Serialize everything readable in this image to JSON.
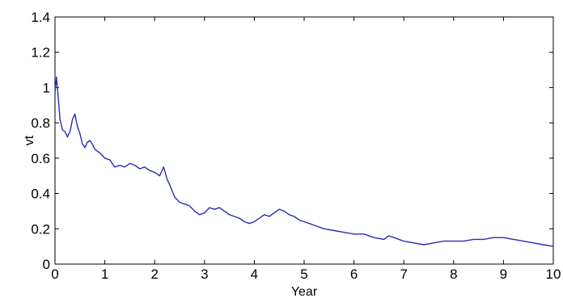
{
  "chart_data": {
    "type": "line",
    "xlabel": "Year",
    "ylabel": "vt",
    "xlim": [
      0,
      10
    ],
    "ylim": [
      0,
      1.4
    ],
    "xticks": [
      "0",
      "1",
      "2",
      "3",
      "4",
      "5",
      "6",
      "7",
      "8",
      "9",
      "10"
    ],
    "yticks": [
      "0",
      "0.2",
      "0.4",
      "0.6",
      "0.8",
      "1",
      "1.2",
      "1.4"
    ],
    "grid": false,
    "line_color": "#2b2bb8",
    "series": [
      {
        "x": [
          0,
          0.03,
          0.06,
          0.1,
          0.15,
          0.2,
          0.25,
          0.3,
          0.35,
          0.4,
          0.45,
          0.5,
          0.55,
          0.6,
          0.65,
          0.7,
          0.75,
          0.8,
          0.9,
          1.0,
          1.1,
          1.2,
          1.3,
          1.4,
          1.5,
          1.6,
          1.7,
          1.8,
          1.9,
          2.0,
          2.1,
          2.18,
          2.25,
          2.3,
          2.4,
          2.5,
          2.6,
          2.7,
          2.8,
          2.9,
          3.0,
          3.1,
          3.2,
          3.3,
          3.4,
          3.5,
          3.6,
          3.7,
          3.8,
          3.9,
          4.0,
          4.1,
          4.2,
          4.3,
          4.4,
          4.5,
          4.6,
          4.7,
          4.8,
          4.9,
          5.0,
          5.2,
          5.4,
          5.6,
          5.8,
          6.0,
          6.2,
          6.4,
          6.6,
          6.7,
          6.8,
          7.0,
          7.2,
          7.4,
          7.6,
          7.8,
          8.0,
          8.2,
          8.4,
          8.6,
          8.8,
          9.0,
          9.2,
          9.4,
          9.6,
          9.8,
          10.0
        ],
        "y": [
          0.97,
          1.06,
          0.96,
          0.82,
          0.76,
          0.75,
          0.72,
          0.75,
          0.82,
          0.85,
          0.78,
          0.74,
          0.68,
          0.66,
          0.69,
          0.7,
          0.68,
          0.65,
          0.63,
          0.6,
          0.59,
          0.55,
          0.56,
          0.55,
          0.57,
          0.56,
          0.54,
          0.55,
          0.53,
          0.52,
          0.5,
          0.55,
          0.48,
          0.45,
          0.38,
          0.35,
          0.34,
          0.33,
          0.3,
          0.28,
          0.29,
          0.32,
          0.31,
          0.32,
          0.3,
          0.28,
          0.27,
          0.26,
          0.24,
          0.23,
          0.24,
          0.26,
          0.28,
          0.27,
          0.29,
          0.31,
          0.3,
          0.28,
          0.27,
          0.25,
          0.24,
          0.22,
          0.2,
          0.19,
          0.18,
          0.17,
          0.17,
          0.15,
          0.14,
          0.16,
          0.15,
          0.13,
          0.12,
          0.11,
          0.12,
          0.13,
          0.13,
          0.13,
          0.14,
          0.14,
          0.15,
          0.15,
          0.14,
          0.13,
          0.12,
          0.11,
          0.1
        ]
      }
    ]
  }
}
